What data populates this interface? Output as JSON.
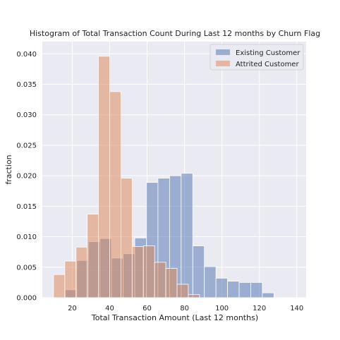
{
  "chart_data": {
    "type": "bar",
    "title": "Histogram of Total Transaction Count During Last 12 months by Churn Flag",
    "xlabel": "Total Transaction Amount (Last 12 months)",
    "ylabel": "fraction",
    "xlim": [
      4,
      145
    ],
    "ylim": [
      0,
      0.042
    ],
    "xticks": [
      20,
      40,
      60,
      80,
      100,
      120,
      140
    ],
    "yticks": [
      0.0,
      0.005,
      0.01,
      0.015,
      0.02,
      0.025,
      0.03,
      0.035,
      0.04
    ],
    "ytick_labels": [
      "0.000",
      "0.005",
      "0.010",
      "0.015",
      "0.020",
      "0.025",
      "0.030",
      "0.035",
      "0.040"
    ],
    "grid": true,
    "legend_position": "top-right",
    "series": [
      {
        "name": "Existing Customer",
        "color": "#4c72b0",
        "alpha": 0.5,
        "bin_edges": [
          10.0,
          16.2,
          22.4,
          28.6,
          34.8,
          41.0,
          47.2,
          53.4,
          59.6,
          65.8,
          72.0,
          78.2,
          84.4,
          90.6,
          96.8,
          103.0,
          109.2,
          115.4,
          121.6,
          127.8,
          134.0
        ],
        "values": [
          0.0,
          0.0013,
          0.0061,
          0.0092,
          0.0097,
          0.0065,
          0.0072,
          0.0098,
          0.0189,
          0.0196,
          0.02,
          0.0204,
          0.0085,
          0.0051,
          0.0032,
          0.0027,
          0.0025,
          0.0025,
          0.0008,
          0.0
        ]
      },
      {
        "name": "Attrited Customer",
        "color": "#dd8452",
        "alpha": 0.5,
        "bin_edges": [
          10.0,
          16.0,
          22.0,
          28.0,
          34.0,
          40.0,
          46.0,
          52.0,
          58.0,
          64.0,
          70.0,
          76.0,
          82.0,
          88.0,
          94.0
        ],
        "values": [
          0.0038,
          0.006,
          0.0083,
          0.0137,
          0.0396,
          0.0338,
          0.0196,
          0.0084,
          0.0085,
          0.0058,
          0.0048,
          0.0022,
          0.0005,
          0.0
        ]
      }
    ]
  }
}
